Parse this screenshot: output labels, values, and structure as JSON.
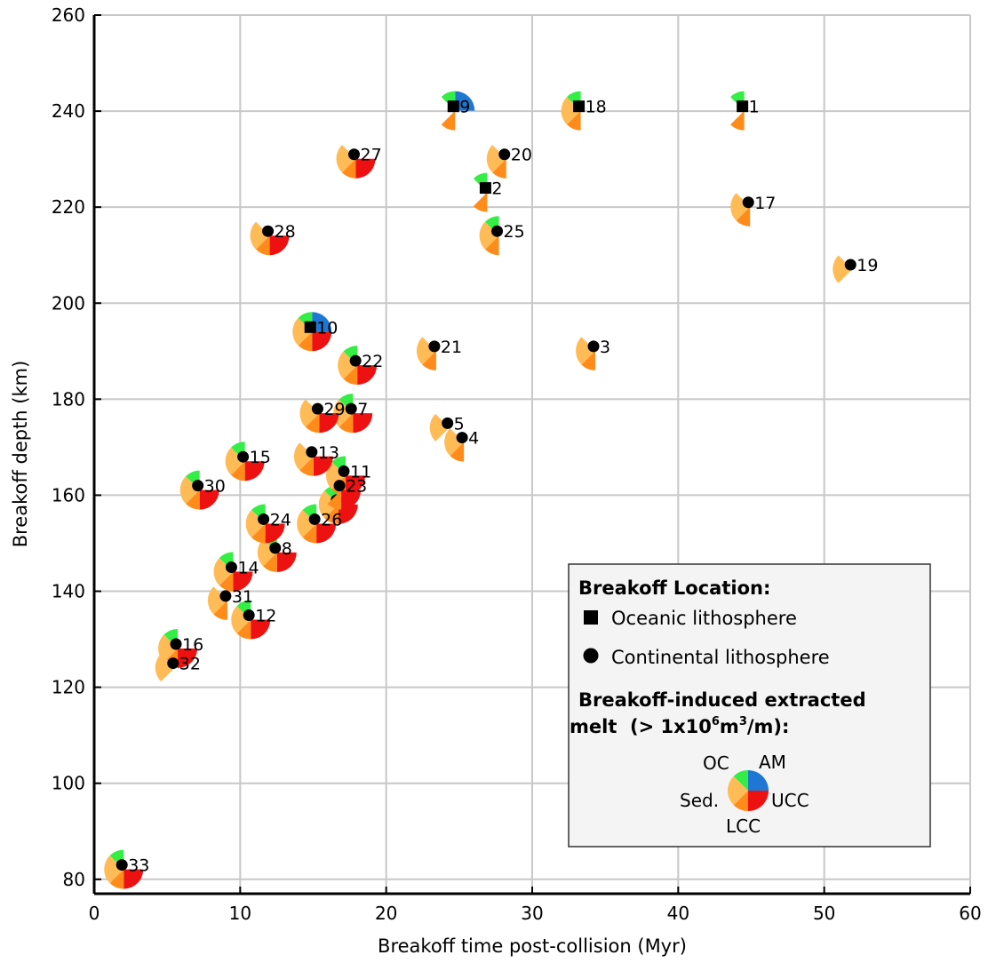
{
  "chart_data": {
    "type": "scatter",
    "xlabel": "Breakoff time post-collision (Myr)",
    "ylabel": "Breakoff depth (km)",
    "xlim": [
      0,
      60
    ],
    "ylim": [
      77,
      260
    ],
    "xticks": [
      0,
      10,
      20,
      30,
      40,
      50,
      60
    ],
    "yticks": [
      80,
      100,
      120,
      140,
      160,
      180,
      200,
      220,
      240,
      260
    ],
    "grid": true,
    "legend_position": "lower-right",
    "marker_symbols": {
      "oceanic": "square",
      "continental": "circle"
    },
    "slice_colors": {
      "OC": "#1f77d4",
      "AM": "#ee1111",
      "UCC": "#ff8c1a",
      "LCC": "#ffbb55",
      "Sed": "#33ee44"
    },
    "points": [
      {
        "id": "1",
        "x": 44.4,
        "y": 241,
        "loc": "oceanic",
        "melt": {
          "OC": 0,
          "AM": 0,
          "UCC": 1,
          "LCC": 0,
          "Sed": 1
        }
      },
      {
        "id": "2",
        "x": 26.8,
        "y": 224,
        "loc": "oceanic",
        "melt": {
          "OC": 0,
          "AM": 0,
          "UCC": 1,
          "LCC": 0,
          "Sed": 1
        }
      },
      {
        "id": "3",
        "x": 34.2,
        "y": 191,
        "loc": "continental",
        "melt": {
          "OC": 0,
          "AM": 0,
          "UCC": 1,
          "LCC": 1,
          "Sed": 0
        }
      },
      {
        "id": "4",
        "x": 25.2,
        "y": 172,
        "loc": "continental",
        "melt": {
          "OC": 0,
          "AM": 0,
          "UCC": 1,
          "LCC": 1,
          "Sed": 0
        }
      },
      {
        "id": "5",
        "x": 24.2,
        "y": 175,
        "loc": "continental",
        "melt": {
          "OC": 0,
          "AM": 0,
          "UCC": 0,
          "LCC": 1,
          "Sed": 0
        }
      },
      {
        "id": "6",
        "x": 16.6,
        "y": 159,
        "loc": "continental",
        "melt": {
          "OC": 0,
          "AM": 1,
          "UCC": 1,
          "LCC": 1,
          "Sed": 1
        }
      },
      {
        "id": "7",
        "x": 17.6,
        "y": 178,
        "loc": "continental",
        "melt": {
          "OC": 0,
          "AM": 1,
          "UCC": 1,
          "LCC": 1,
          "Sed": 1
        }
      },
      {
        "id": "8",
        "x": 12.4,
        "y": 149,
        "loc": "continental",
        "melt": {
          "OC": 0,
          "AM": 1,
          "UCC": 1,
          "LCC": 1,
          "Sed": 1
        }
      },
      {
        "id": "9",
        "x": 24.6,
        "y": 241,
        "loc": "oceanic",
        "melt": {
          "OC": 1,
          "AM": 0,
          "UCC": 1,
          "LCC": 0,
          "Sed": 1
        }
      },
      {
        "id": "10",
        "x": 14.8,
        "y": 195,
        "loc": "oceanic",
        "melt": {
          "OC": 1,
          "AM": 1,
          "UCC": 1,
          "LCC": 1,
          "Sed": 1
        }
      },
      {
        "id": "11",
        "x": 17.1,
        "y": 165,
        "loc": "continental",
        "melt": {
          "OC": 0,
          "AM": 1,
          "UCC": 1,
          "LCC": 1,
          "Sed": 1
        }
      },
      {
        "id": "12",
        "x": 10.6,
        "y": 135,
        "loc": "continental",
        "melt": {
          "OC": 0,
          "AM": 1,
          "UCC": 1,
          "LCC": 1,
          "Sed": 1
        }
      },
      {
        "id": "13",
        "x": 14.9,
        "y": 169,
        "loc": "continental",
        "melt": {
          "OC": 0,
          "AM": 1,
          "UCC": 1,
          "LCC": 1,
          "Sed": 0
        }
      },
      {
        "id": "14",
        "x": 9.4,
        "y": 145,
        "loc": "continental",
        "melt": {
          "OC": 0,
          "AM": 1,
          "UCC": 1,
          "LCC": 1,
          "Sed": 1
        }
      },
      {
        "id": "15",
        "x": 10.2,
        "y": 168,
        "loc": "continental",
        "melt": {
          "OC": 0,
          "AM": 1,
          "UCC": 1,
          "LCC": 1,
          "Sed": 1
        }
      },
      {
        "id": "16",
        "x": 5.6,
        "y": 129,
        "loc": "continental",
        "melt": {
          "OC": 0,
          "AM": 1,
          "UCC": 1,
          "LCC": 1,
          "Sed": 1
        }
      },
      {
        "id": "17",
        "x": 44.8,
        "y": 221,
        "loc": "continental",
        "melt": {
          "OC": 0,
          "AM": 0,
          "UCC": 1,
          "LCC": 1,
          "Sed": 0
        }
      },
      {
        "id": "18",
        "x": 33.2,
        "y": 241,
        "loc": "oceanic",
        "melt": {
          "OC": 0,
          "AM": 0,
          "UCC": 1,
          "LCC": 1,
          "Sed": 1
        }
      },
      {
        "id": "19",
        "x": 51.8,
        "y": 208,
        "loc": "continental",
        "melt": {
          "OC": 0,
          "AM": 0,
          "UCC": 0,
          "LCC": 1,
          "Sed": 0
        }
      },
      {
        "id": "20",
        "x": 28.1,
        "y": 231,
        "loc": "continental",
        "melt": {
          "OC": 0,
          "AM": 0,
          "UCC": 1,
          "LCC": 1,
          "Sed": 0
        }
      },
      {
        "id": "21",
        "x": 23.3,
        "y": 191,
        "loc": "continental",
        "melt": {
          "OC": 0,
          "AM": 0,
          "UCC": 1,
          "LCC": 1,
          "Sed": 0
        }
      },
      {
        "id": "22",
        "x": 17.9,
        "y": 188,
        "loc": "continental",
        "melt": {
          "OC": 0,
          "AM": 1,
          "UCC": 1,
          "LCC": 1,
          "Sed": 1
        }
      },
      {
        "id": "23",
        "x": 16.8,
        "y": 162,
        "loc": "continental",
        "melt": {
          "OC": 0,
          "AM": 1,
          "UCC": 1,
          "LCC": 0,
          "Sed": 0
        }
      },
      {
        "id": "24",
        "x": 11.6,
        "y": 155,
        "loc": "continental",
        "melt": {
          "OC": 0,
          "AM": 1,
          "UCC": 1,
          "LCC": 1,
          "Sed": 1
        }
      },
      {
        "id": "25",
        "x": 27.6,
        "y": 215,
        "loc": "continental",
        "melt": {
          "OC": 0,
          "AM": 0,
          "UCC": 1,
          "LCC": 1,
          "Sed": 1
        }
      },
      {
        "id": "26",
        "x": 15.1,
        "y": 155,
        "loc": "continental",
        "melt": {
          "OC": 0,
          "AM": 1,
          "UCC": 1,
          "LCC": 1,
          "Sed": 1
        }
      },
      {
        "id": "27",
        "x": 17.8,
        "y": 231,
        "loc": "continental",
        "melt": {
          "OC": 0,
          "AM": 1,
          "UCC": 1,
          "LCC": 1,
          "Sed": 0
        }
      },
      {
        "id": "28",
        "x": 11.9,
        "y": 215,
        "loc": "continental",
        "melt": {
          "OC": 0,
          "AM": 1,
          "UCC": 1,
          "LCC": 1,
          "Sed": 0
        }
      },
      {
        "id": "29",
        "x": 15.3,
        "y": 178,
        "loc": "continental",
        "melt": {
          "OC": 0,
          "AM": 1,
          "UCC": 1,
          "LCC": 1,
          "Sed": 0
        }
      },
      {
        "id": "30",
        "x": 7.1,
        "y": 162,
        "loc": "continental",
        "melt": {
          "OC": 0,
          "AM": 1,
          "UCC": 1,
          "LCC": 1,
          "Sed": 1
        }
      },
      {
        "id": "31",
        "x": 9.0,
        "y": 139,
        "loc": "continental",
        "melt": {
          "OC": 0,
          "AM": 0,
          "UCC": 1,
          "LCC": 1,
          "Sed": 0
        }
      },
      {
        "id": "32",
        "x": 5.4,
        "y": 125,
        "loc": "continental",
        "melt": {
          "OC": 0,
          "AM": 0,
          "UCC": 0,
          "LCC": 1,
          "Sed": 0
        }
      },
      {
        "id": "33",
        "x": 1.9,
        "y": 83,
        "loc": "continental",
        "melt": {
          "OC": 0,
          "AM": 1,
          "UCC": 1,
          "LCC": 1,
          "Sed": 1
        }
      }
    ],
    "legend": {
      "location_title": "Breakoff Location:",
      "oceanic_label": "Oceanic lithosphere",
      "continental_label": "Continental lithosphere",
      "melt_title_line1": "Breakoff-induced extracted",
      "melt_title_line2_a": "melt  (> 1x10",
      "melt_title_sup1": "6",
      "melt_title_line2_b": "m",
      "melt_title_sup2": "3",
      "melt_title_line2_c": "/m):",
      "key_labels": {
        "OC": "OC",
        "AM": "AM",
        "Sed": "Sed.",
        "UCC": "UCC",
        "LCC": "LCC"
      }
    }
  }
}
